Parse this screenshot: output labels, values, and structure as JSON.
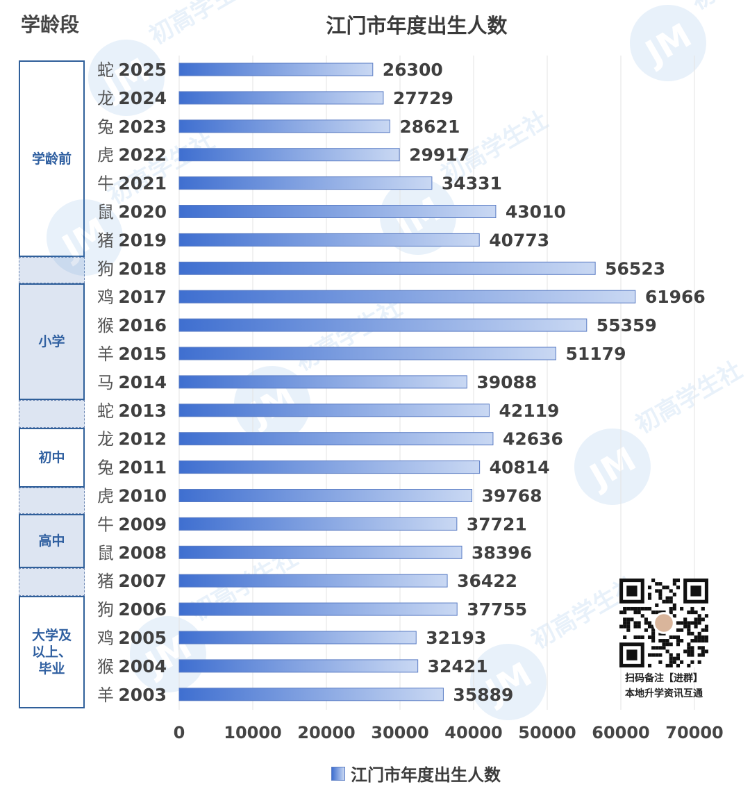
{
  "header": {
    "stage_label": "学龄段",
    "title": "江门市年度出生人数"
  },
  "stage_groups": [
    {
      "label": "学龄前",
      "style": "plain"
    },
    {
      "label": "",
      "style": "shaded"
    },
    {
      "label": "小学",
      "style": "shaded"
    },
    {
      "label": "",
      "style": "shaded"
    },
    {
      "label": "初中",
      "style": "plain"
    },
    {
      "label": "",
      "style": "shaded"
    },
    {
      "label": "高中",
      "style": "shaded"
    },
    {
      "label": "",
      "style": "shaded"
    },
    {
      "label": "大学及\n以上、\n毕业",
      "style": "plain"
    }
  ],
  "qr": {
    "line1": "扫码备注【进群】",
    "line2": "本地升学资讯互通"
  },
  "legend": {
    "label": "江门市年度出生人数"
  },
  "watermark": {
    "logo": "JM",
    "text": "初高学生社"
  },
  "colors": {
    "bar_start": "#3f6fd0",
    "bar_end": "#c9d8f3",
    "bar_border": "#5a7cc4",
    "group_border": "#2f5f9a",
    "group_fill": "#dde5f2",
    "grid": "#e3e3e3"
  },
  "chart_data": {
    "type": "bar",
    "orientation": "horizontal",
    "title": "江门市年度出生人数",
    "categories": [
      "2025",
      "2024",
      "2023",
      "2022",
      "2021",
      "2020",
      "2019",
      "2018",
      "2017",
      "2016",
      "2015",
      "2014",
      "2013",
      "2012",
      "2011",
      "2010",
      "2009",
      "2008",
      "2007",
      "2006",
      "2005",
      "2004",
      "2003"
    ],
    "zodiac": [
      "蛇",
      "龙",
      "兔",
      "虎",
      "牛",
      "鼠",
      "猪",
      "狗",
      "鸡",
      "猴",
      "羊",
      "马",
      "蛇",
      "龙",
      "兔",
      "虎",
      "牛",
      "鼠",
      "猪",
      "狗",
      "鸡",
      "猴",
      "羊"
    ],
    "series": [
      {
        "name": "江门市年度出生人数",
        "values": [
          26300,
          27729,
          28621,
          29917,
          34331,
          43010,
          40773,
          56523,
          61966,
          55359,
          51179,
          39088,
          42119,
          42636,
          40814,
          39768,
          37721,
          38396,
          36422,
          37755,
          32193,
          32421,
          35889
        ]
      }
    ],
    "xlim": [
      0,
      70000
    ],
    "xticks": [
      0,
      10000,
      20000,
      30000,
      40000,
      50000,
      60000,
      70000
    ],
    "grid": true,
    "legend_position": "bottom"
  }
}
